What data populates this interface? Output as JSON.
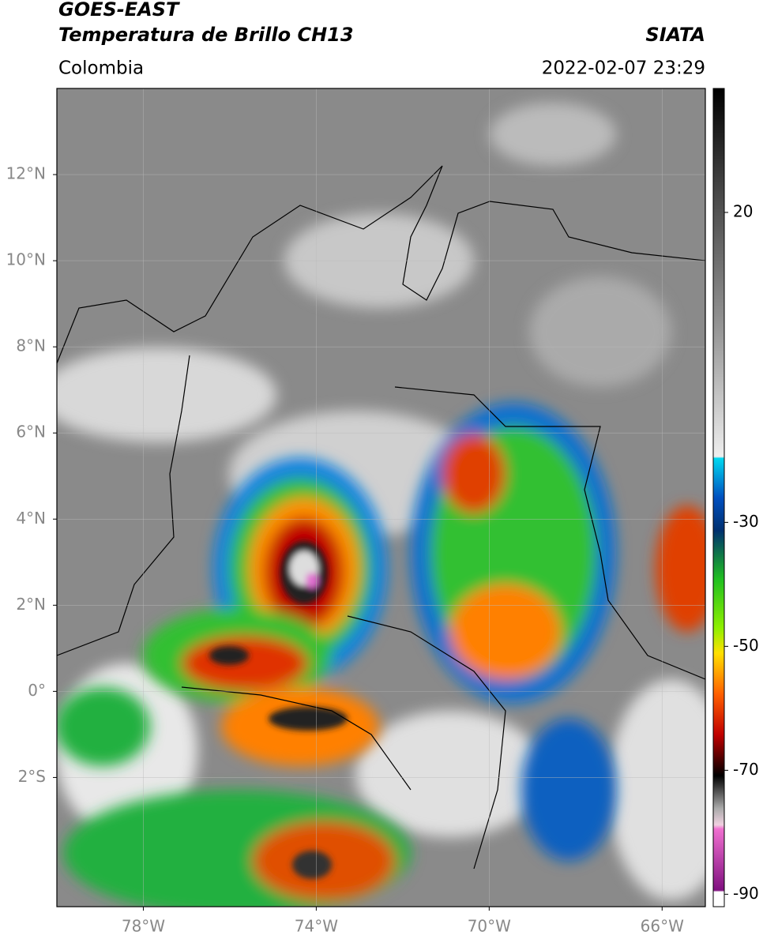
{
  "header": {
    "title_line_1": "GOES-EAST",
    "title_line_2": "Temperatura de Brillo CH13",
    "source": "SIATA",
    "region": "Colombia",
    "datetime": "2022-02-07 23:29"
  },
  "map": {
    "lonlim": [
      -80,
      -65
    ],
    "latlim": [
      -5,
      14
    ],
    "lon_ticks": [
      {
        "value": -78,
        "label": "78°W"
      },
      {
        "value": -74,
        "label": "74°W"
      },
      {
        "value": -70,
        "label": "70°W"
      },
      {
        "value": -66,
        "label": "66°W"
      }
    ],
    "lat_ticks": [
      {
        "value": 12,
        "label": "12°N"
      },
      {
        "value": 10,
        "label": "10°N"
      },
      {
        "value": 8,
        "label": "8°N"
      },
      {
        "value": 6,
        "label": "6°N"
      },
      {
        "value": 4,
        "label": "4°N"
      },
      {
        "value": 2,
        "label": "2°N"
      },
      {
        "value": 0,
        "label": "0°"
      },
      {
        "value": -2,
        "label": "2°S"
      }
    ],
    "grid": true
  },
  "colorbar": {
    "lim": [
      -92,
      40
    ],
    "ticks": [
      20,
      -30,
      -50,
      -70,
      -90
    ]
  }
}
